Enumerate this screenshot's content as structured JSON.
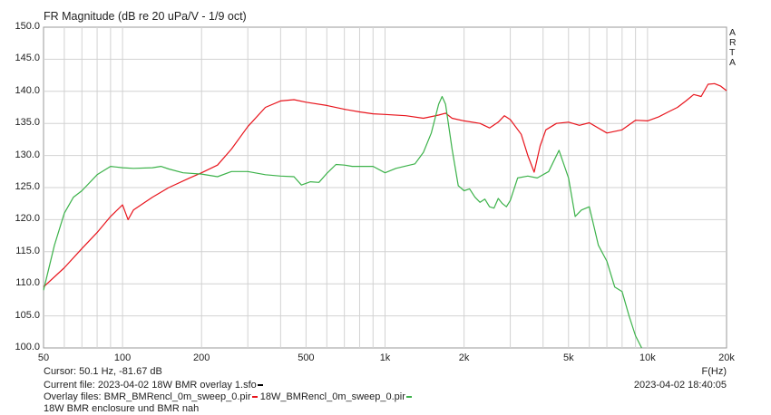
{
  "chart_data": {
    "type": "line",
    "title": "FR Magnitude (dB re 20 uPa/V - 1/9 oct)",
    "xlabel": "F(Hz)",
    "ylabel": "",
    "xscale": "log",
    "xlim": [
      50,
      20000
    ],
    "ylim": [
      100,
      150
    ],
    "grid": true,
    "y_ticks": [
      "150.0",
      "145.0",
      "140.0",
      "135.0",
      "130.0",
      "125.0",
      "120.0",
      "115.0",
      "110.0",
      "105.0",
      "100.0"
    ],
    "x_tick_values": [
      50,
      100,
      200,
      500,
      1000,
      2000,
      5000,
      10000,
      20000
    ],
    "x_ticks": [
      "50",
      "100",
      "200",
      "500",
      "1k",
      "2k",
      "5k",
      "10k",
      "20k"
    ],
    "series": [
      {
        "color": "#e8141c",
        "points": [
          [
            50,
            109.5
          ],
          [
            60,
            112.5
          ],
          [
            70,
            115.5
          ],
          [
            80,
            118
          ],
          [
            90,
            120.5
          ],
          [
            100,
            122.3
          ],
          [
            105,
            120
          ],
          [
            110,
            121.5
          ],
          [
            130,
            123.5
          ],
          [
            150,
            125
          ],
          [
            180,
            126.5
          ],
          [
            200,
            127.3
          ],
          [
            230,
            128.5
          ],
          [
            260,
            131
          ],
          [
            300,
            134.5
          ],
          [
            350,
            137.5
          ],
          [
            400,
            138.5
          ],
          [
            450,
            138.7
          ],
          [
            500,
            138.3
          ],
          [
            600,
            137.8
          ],
          [
            700,
            137.2
          ],
          [
            800,
            136.8
          ],
          [
            900,
            136.5
          ],
          [
            1000,
            136.4
          ],
          [
            1200,
            136.2
          ],
          [
            1400,
            135.8
          ],
          [
            1600,
            136.3
          ],
          [
            1700,
            136.6
          ],
          [
            1800,
            135.8
          ],
          [
            2000,
            135.4
          ],
          [
            2300,
            135
          ],
          [
            2500,
            134.3
          ],
          [
            2700,
            135.2
          ],
          [
            2850,
            136.2
          ],
          [
            3000,
            135.6
          ],
          [
            3300,
            133.3
          ],
          [
            3500,
            130
          ],
          [
            3700,
            127.4
          ],
          [
            3900,
            131.5
          ],
          [
            4100,
            134
          ],
          [
            4500,
            135
          ],
          [
            5000,
            135.2
          ],
          [
            5500,
            134.7
          ],
          [
            6000,
            135.1
          ],
          [
            7000,
            133.5
          ],
          [
            8000,
            134
          ],
          [
            9000,
            135.5
          ],
          [
            10000,
            135.4
          ],
          [
            11000,
            136
          ],
          [
            12000,
            136.8
          ],
          [
            13000,
            137.5
          ],
          [
            14000,
            138.5
          ],
          [
            15000,
            139.5
          ],
          [
            16000,
            139.2
          ],
          [
            17000,
            141.1
          ],
          [
            18000,
            141.2
          ],
          [
            19000,
            140.8
          ],
          [
            20000,
            140.1
          ]
        ]
      },
      {
        "color": "#3cb24a",
        "points": [
          [
            50,
            109
          ],
          [
            55,
            116
          ],
          [
            60,
            121
          ],
          [
            65,
            123.5
          ],
          [
            70,
            124.5
          ],
          [
            80,
            127
          ],
          [
            90,
            128.3
          ],
          [
            100,
            128.1
          ],
          [
            110,
            128
          ],
          [
            130,
            128.1
          ],
          [
            140,
            128.3
          ],
          [
            150,
            127.9
          ],
          [
            170,
            127.3
          ],
          [
            200,
            127.1
          ],
          [
            230,
            126.7
          ],
          [
            260,
            127.5
          ],
          [
            300,
            127.5
          ],
          [
            350,
            127
          ],
          [
            400,
            126.8
          ],
          [
            450,
            126.7
          ],
          [
            480,
            125.4
          ],
          [
            520,
            125.9
          ],
          [
            560,
            125.8
          ],
          [
            600,
            127.2
          ],
          [
            650,
            128.6
          ],
          [
            700,
            128.5
          ],
          [
            750,
            128.3
          ],
          [
            800,
            128.3
          ],
          [
            900,
            128.3
          ],
          [
            1000,
            127.3
          ],
          [
            1100,
            128
          ],
          [
            1300,
            128.7
          ],
          [
            1400,
            130.5
          ],
          [
            1500,
            133.5
          ],
          [
            1600,
            138
          ],
          [
            1650,
            139.2
          ],
          [
            1700,
            138
          ],
          [
            1800,
            131
          ],
          [
            1900,
            125.3
          ],
          [
            2000,
            124.5
          ],
          [
            2100,
            124.8
          ],
          [
            2200,
            123.5
          ],
          [
            2300,
            122.7
          ],
          [
            2400,
            123.2
          ],
          [
            2500,
            122
          ],
          [
            2600,
            121.8
          ],
          [
            2700,
            123.3
          ],
          [
            2800,
            122.5
          ],
          [
            2900,
            122
          ],
          [
            3000,
            123
          ],
          [
            3200,
            126.5
          ],
          [
            3500,
            126.8
          ],
          [
            3800,
            126.5
          ],
          [
            4200,
            127.5
          ],
          [
            4600,
            130.8
          ],
          [
            5000,
            126.5
          ],
          [
            5300,
            120.5
          ],
          [
            5600,
            121.5
          ],
          [
            6000,
            122
          ],
          [
            6500,
            116
          ],
          [
            7000,
            113.5
          ],
          [
            7500,
            109.5
          ],
          [
            8000,
            108.8
          ],
          [
            8500,
            105
          ],
          [
            9000,
            101.9
          ],
          [
            9500,
            100
          ]
        ]
      }
    ]
  },
  "brand_label": "ARTA",
  "cursor_readout": "Cursor: 50.1 Hz, -81.67 dB",
  "current_file": "Current file: 2023-04-02 18W BMR overlay 1.sfo",
  "overlay_label": "Overlay files: BMR_BMRencl_0m_sweep_0.pir",
  "overlay_file_2": "18W_BMRencl_0m_sweep_0.pir",
  "comment": "18W BMR enclosure und BMR nah",
  "timestamp": "2023-04-02  18:40:05"
}
